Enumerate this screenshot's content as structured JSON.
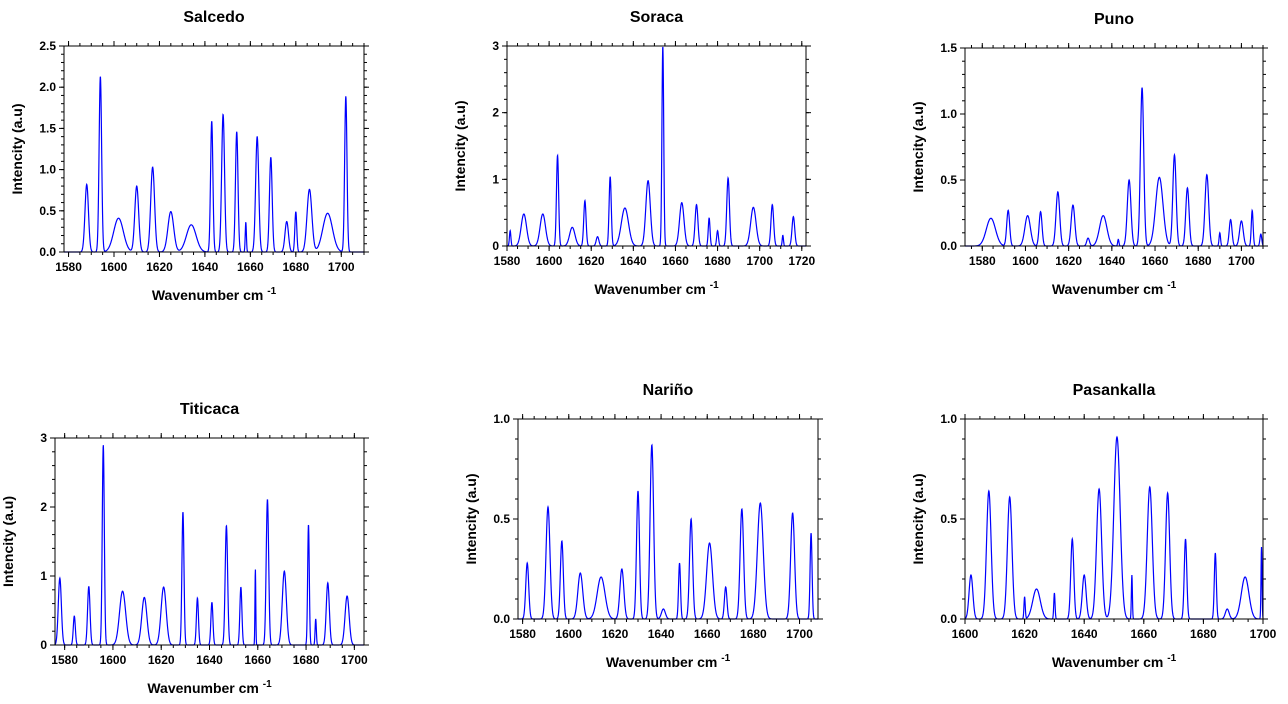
{
  "figure": {
    "line_color": "#0000ff",
    "axis_color": "#000000",
    "background": "#ffffff"
  },
  "chart_data": [
    {
      "type": "line",
      "title": "Salcedo",
      "xlabel": "Wavenumber cm",
      "xlabel_superscript": "-1",
      "ylabel": "Intencity (a.u)",
      "xlim": [
        1578,
        1710
      ],
      "ylim": [
        0,
        2.5
      ],
      "xticks": [
        1580,
        1600,
        1620,
        1640,
        1660,
        1680,
        1700
      ],
      "xtick_labels": [
        "1580",
        "1600",
        "1620",
        "1640",
        "1660",
        "1680",
        "1700"
      ],
      "yticks": [
        0,
        0.5,
        1.0,
        1.5,
        2.0,
        2.5
      ],
      "ytick_labels": [
        "0.0",
        "0.5",
        "1.0",
        "1.5",
        "2.0",
        "2.5"
      ],
      "grid": false,
      "series": [
        {
          "peaks": [
            {
              "center": 1588,
              "height": 0.82,
              "fwhm": 1.8
            },
            {
              "center": 1594,
              "height": 2.13,
              "fwhm": 1.3
            },
            {
              "center": 1602,
              "height": 0.41,
              "fwhm": 5.0
            },
            {
              "center": 1610,
              "height": 0.8,
              "fwhm": 2.0
            },
            {
              "center": 1617,
              "height": 1.03,
              "fwhm": 2.0
            },
            {
              "center": 1625,
              "height": 0.49,
              "fwhm": 3.0
            },
            {
              "center": 1634,
              "height": 0.33,
              "fwhm": 5.0
            },
            {
              "center": 1643,
              "height": 1.59,
              "fwhm": 1.2
            },
            {
              "center": 1648,
              "height": 1.67,
              "fwhm": 1.5
            },
            {
              "center": 1654,
              "height": 1.46,
              "fwhm": 1.3
            },
            {
              "center": 1658,
              "height": 0.36,
              "fwhm": 0.6
            },
            {
              "center": 1663,
              "height": 1.4,
              "fwhm": 1.6
            },
            {
              "center": 1669,
              "height": 1.15,
              "fwhm": 1.4
            },
            {
              "center": 1676,
              "height": 0.37,
              "fwhm": 1.8
            },
            {
              "center": 1680,
              "height": 0.49,
              "fwhm": 1.0
            },
            {
              "center": 1686,
              "height": 0.76,
              "fwhm": 2.5
            },
            {
              "center": 1694,
              "height": 0.47,
              "fwhm": 5.0
            },
            {
              "center": 1702,
              "height": 1.89,
              "fwhm": 1.2
            }
          ]
        }
      ]
    },
    {
      "type": "line",
      "title": "Soraca",
      "xlabel": "Wavenumber cm",
      "xlabel_superscript": "-1",
      "ylabel": "Intencity (a.u)",
      "xlim": [
        1580,
        1722
      ],
      "ylim": [
        0,
        3
      ],
      "xticks": [
        1580,
        1600,
        1620,
        1640,
        1660,
        1680,
        1700,
        1720
      ],
      "xtick_labels": [
        "1580",
        "1600",
        "1620",
        "1640",
        "1660",
        "1680",
        "1700",
        "1720"
      ],
      "yticks": [
        0,
        1,
        2,
        3
      ],
      "ytick_labels": [
        "0",
        "1",
        "2",
        "3"
      ],
      "grid": false,
      "series": [
        {
          "peaks": [
            {
              "center": 1581.5,
              "height": 0.23,
              "fwhm": 0.8
            },
            {
              "center": 1588,
              "height": 0.48,
              "fwhm": 3.0
            },
            {
              "center": 1597,
              "height": 0.48,
              "fwhm": 3.0
            },
            {
              "center": 1604,
              "height": 1.36,
              "fwhm": 1.2
            },
            {
              "center": 1611,
              "height": 0.28,
              "fwhm": 3.0
            },
            {
              "center": 1617,
              "height": 0.68,
              "fwhm": 1.3
            },
            {
              "center": 1623,
              "height": 0.14,
              "fwhm": 1.5
            },
            {
              "center": 1629,
              "height": 1.04,
              "fwhm": 1.2
            },
            {
              "center": 1636,
              "height": 0.57,
              "fwhm": 4.0
            },
            {
              "center": 1647,
              "height": 0.98,
              "fwhm": 2.5
            },
            {
              "center": 1654,
              "height": 3.0,
              "fwhm": 1.0
            },
            {
              "center": 1663,
              "height": 0.65,
              "fwhm": 2.5
            },
            {
              "center": 1670,
              "height": 0.62,
              "fwhm": 1.6
            },
            {
              "center": 1676,
              "height": 0.42,
              "fwhm": 1.0
            },
            {
              "center": 1680,
              "height": 0.23,
              "fwhm": 1.0
            },
            {
              "center": 1685,
              "height": 1.02,
              "fwhm": 1.5
            },
            {
              "center": 1697,
              "height": 0.58,
              "fwhm": 3.0
            },
            {
              "center": 1706,
              "height": 0.62,
              "fwhm": 1.5
            },
            {
              "center": 1711,
              "height": 0.16,
              "fwhm": 0.7
            },
            {
              "center": 1716,
              "height": 0.44,
              "fwhm": 1.5
            }
          ]
        }
      ]
    },
    {
      "type": "line",
      "title": "Puno",
      "xlabel": "Wavenumber cm",
      "xlabel_superscript": "-1",
      "ylabel": "Intencity (a.u)",
      "xlim": [
        1572,
        1710
      ],
      "ylim": [
        0,
        1.5
      ],
      "xticks": [
        1580,
        1600,
        1620,
        1640,
        1660,
        1680,
        1700
      ],
      "xtick_labels": [
        "1580",
        "1600",
        "1620",
        "1640",
        "1660",
        "1680",
        "1700"
      ],
      "yticks": [
        0,
        0.5,
        1.0,
        1.5
      ],
      "ytick_labels": [
        "0.0",
        "0.5",
        "1.0",
        "1.5"
      ],
      "grid": false,
      "series": [
        {
          "peaks": [
            {
              "center": 1584,
              "height": 0.21,
              "fwhm": 5.0
            },
            {
              "center": 1592,
              "height": 0.27,
              "fwhm": 1.6
            },
            {
              "center": 1601,
              "height": 0.23,
              "fwhm": 3.0
            },
            {
              "center": 1607,
              "height": 0.26,
              "fwhm": 1.6
            },
            {
              "center": 1615,
              "height": 0.41,
              "fwhm": 2.0
            },
            {
              "center": 1622,
              "height": 0.31,
              "fwhm": 2.0
            },
            {
              "center": 1629,
              "height": 0.06,
              "fwhm": 1.5
            },
            {
              "center": 1636,
              "height": 0.23,
              "fwhm": 4.0
            },
            {
              "center": 1643,
              "height": 0.05,
              "fwhm": 0.7
            },
            {
              "center": 1648,
              "height": 0.5,
              "fwhm": 2.0
            },
            {
              "center": 1654,
              "height": 1.2,
              "fwhm": 1.8
            },
            {
              "center": 1662,
              "height": 0.52,
              "fwhm": 4.0
            },
            {
              "center": 1669,
              "height": 0.69,
              "fwhm": 1.8
            },
            {
              "center": 1675,
              "height": 0.44,
              "fwhm": 1.8
            },
            {
              "center": 1684,
              "height": 0.54,
              "fwhm": 2.0
            },
            {
              "center": 1690,
              "height": 0.1,
              "fwhm": 0.8
            },
            {
              "center": 1695,
              "height": 0.2,
              "fwhm": 1.5
            },
            {
              "center": 1700,
              "height": 0.19,
              "fwhm": 2.0
            },
            {
              "center": 1705,
              "height": 0.27,
              "fwhm": 1.0
            },
            {
              "center": 1709,
              "height": 0.09,
              "fwhm": 1.0
            }
          ]
        }
      ]
    },
    {
      "type": "line",
      "title": "Titicaca",
      "xlabel": "Wavenumber cm",
      "xlabel_superscript": "-1",
      "ylabel": "Intencity (a.u)",
      "xlim": [
        1576,
        1704
      ],
      "ylim": [
        0,
        3
      ],
      "xticks": [
        1580,
        1600,
        1620,
        1640,
        1660,
        1680,
        1700
      ],
      "xtick_labels": [
        "1580",
        "1600",
        "1620",
        "1640",
        "1660",
        "1680",
        "1700"
      ],
      "yticks": [
        0,
        1,
        2,
        3
      ],
      "ytick_labels": [
        "0",
        "1",
        "2",
        "3"
      ],
      "grid": false,
      "series": [
        {
          "peaks": [
            {
              "center": 1578,
              "height": 0.97,
              "fwhm": 1.5
            },
            {
              "center": 1584,
              "height": 0.42,
              "fwhm": 1.0
            },
            {
              "center": 1590,
              "height": 0.85,
              "fwhm": 1.2
            },
            {
              "center": 1596,
              "height": 2.9,
              "fwhm": 1.0
            },
            {
              "center": 1604,
              "height": 0.78,
              "fwhm": 3.0
            },
            {
              "center": 1613,
              "height": 0.69,
              "fwhm": 2.5
            },
            {
              "center": 1621,
              "height": 0.84,
              "fwhm": 2.5
            },
            {
              "center": 1629,
              "height": 1.93,
              "fwhm": 1.0
            },
            {
              "center": 1635,
              "height": 0.68,
              "fwhm": 1.0
            },
            {
              "center": 1641,
              "height": 0.62,
              "fwhm": 1.0
            },
            {
              "center": 1647,
              "height": 1.73,
              "fwhm": 1.2
            },
            {
              "center": 1653,
              "height": 0.84,
              "fwhm": 1.0
            },
            {
              "center": 1659,
              "height": 1.1,
              "fwhm": 0.4
            },
            {
              "center": 1664,
              "height": 2.11,
              "fwhm": 1.2
            },
            {
              "center": 1671,
              "height": 1.07,
              "fwhm": 2.0
            },
            {
              "center": 1681,
              "height": 1.75,
              "fwhm": 0.8
            },
            {
              "center": 1684,
              "height": 0.38,
              "fwhm": 0.6
            },
            {
              "center": 1689,
              "height": 0.9,
              "fwhm": 1.5
            },
            {
              "center": 1697,
              "height": 0.71,
              "fwhm": 2.0
            }
          ]
        }
      ]
    },
    {
      "type": "line",
      "title": "Nariño",
      "xlabel": "Wavenumber cm",
      "xlabel_superscript": "-1",
      "ylabel": "Intencity (a.u)",
      "xlim": [
        1578,
        1708
      ],
      "ylim": [
        0,
        1.0
      ],
      "xticks": [
        1580,
        1600,
        1620,
        1640,
        1660,
        1680,
        1700
      ],
      "xtick_labels": [
        "1580",
        "1600",
        "1620",
        "1640",
        "1660",
        "1680",
        "1700"
      ],
      "yticks": [
        0,
        0.5,
        1.0
      ],
      "ytick_labels": [
        "0.0",
        "0.5",
        "1.0"
      ],
      "grid": false,
      "series": [
        {
          "peaks": [
            {
              "center": 1582,
              "height": 0.28,
              "fwhm": 1.5
            },
            {
              "center": 1591,
              "height": 0.56,
              "fwhm": 2.0
            },
            {
              "center": 1597,
              "height": 0.39,
              "fwhm": 1.5
            },
            {
              "center": 1605,
              "height": 0.23,
              "fwhm": 2.5
            },
            {
              "center": 1614,
              "height": 0.21,
              "fwhm": 4.0
            },
            {
              "center": 1623,
              "height": 0.25,
              "fwhm": 2.0
            },
            {
              "center": 1630,
              "height": 0.64,
              "fwhm": 1.5
            },
            {
              "center": 1636,
              "height": 0.87,
              "fwhm": 1.8
            },
            {
              "center": 1641,
              "height": 0.05,
              "fwhm": 2.0
            },
            {
              "center": 1648,
              "height": 0.28,
              "fwhm": 1.0
            },
            {
              "center": 1653,
              "height": 0.5,
              "fwhm": 1.6
            },
            {
              "center": 1661,
              "height": 0.38,
              "fwhm": 3.0
            },
            {
              "center": 1668,
              "height": 0.16,
              "fwhm": 1.3
            },
            {
              "center": 1675,
              "height": 0.55,
              "fwhm": 1.8
            },
            {
              "center": 1683,
              "height": 0.58,
              "fwhm": 3.0
            },
            {
              "center": 1697,
              "height": 0.53,
              "fwhm": 2.0
            },
            {
              "center": 1705,
              "height": 0.43,
              "fwhm": 1.0
            }
          ]
        }
      ]
    },
    {
      "type": "line",
      "title": "Pasankalla",
      "xlabel": "Wavenumber cm",
      "xlabel_superscript": "-1",
      "ylabel": "Intencity (a.u)",
      "xlim": [
        1600,
        1700
      ],
      "ylim": [
        0,
        1.0
      ],
      "xticks": [
        1600,
        1620,
        1640,
        1660,
        1680,
        1700
      ],
      "xtick_labels": [
        "1600",
        "1620",
        "1640",
        "1660",
        "1680",
        "1700"
      ],
      "yticks": [
        0,
        0.5,
        1.0
      ],
      "ytick_labels": [
        "0.0",
        "0.5",
        "1.0"
      ],
      "grid": false,
      "series": [
        {
          "peaks": [
            {
              "center": 1602,
              "height": 0.22,
              "fwhm": 1.5
            },
            {
              "center": 1608,
              "height": 0.64,
              "fwhm": 1.8
            },
            {
              "center": 1615,
              "height": 0.61,
              "fwhm": 1.8
            },
            {
              "center": 1620,
              "height": 0.11,
              "fwhm": 0.5
            },
            {
              "center": 1624,
              "height": 0.15,
              "fwhm": 3.0
            },
            {
              "center": 1630,
              "height": 0.13,
              "fwhm": 0.5
            },
            {
              "center": 1636,
              "height": 0.4,
              "fwhm": 1.2
            },
            {
              "center": 1640,
              "height": 0.22,
              "fwhm": 1.5
            },
            {
              "center": 1645,
              "height": 0.65,
              "fwhm": 2.0
            },
            {
              "center": 1651,
              "height": 0.91,
              "fwhm": 2.5
            },
            {
              "center": 1656,
              "height": 0.22,
              "fwhm": 0.4
            },
            {
              "center": 1662,
              "height": 0.66,
              "fwhm": 2.0
            },
            {
              "center": 1668,
              "height": 0.63,
              "fwhm": 1.6
            },
            {
              "center": 1674,
              "height": 0.4,
              "fwhm": 1.0
            },
            {
              "center": 1684,
              "height": 0.33,
              "fwhm": 0.8
            },
            {
              "center": 1688,
              "height": 0.05,
              "fwhm": 1.5
            },
            {
              "center": 1694,
              "height": 0.21,
              "fwhm": 3.0
            },
            {
              "center": 1699.5,
              "height": 0.36,
              "fwhm": 0.4
            }
          ]
        }
      ]
    }
  ]
}
